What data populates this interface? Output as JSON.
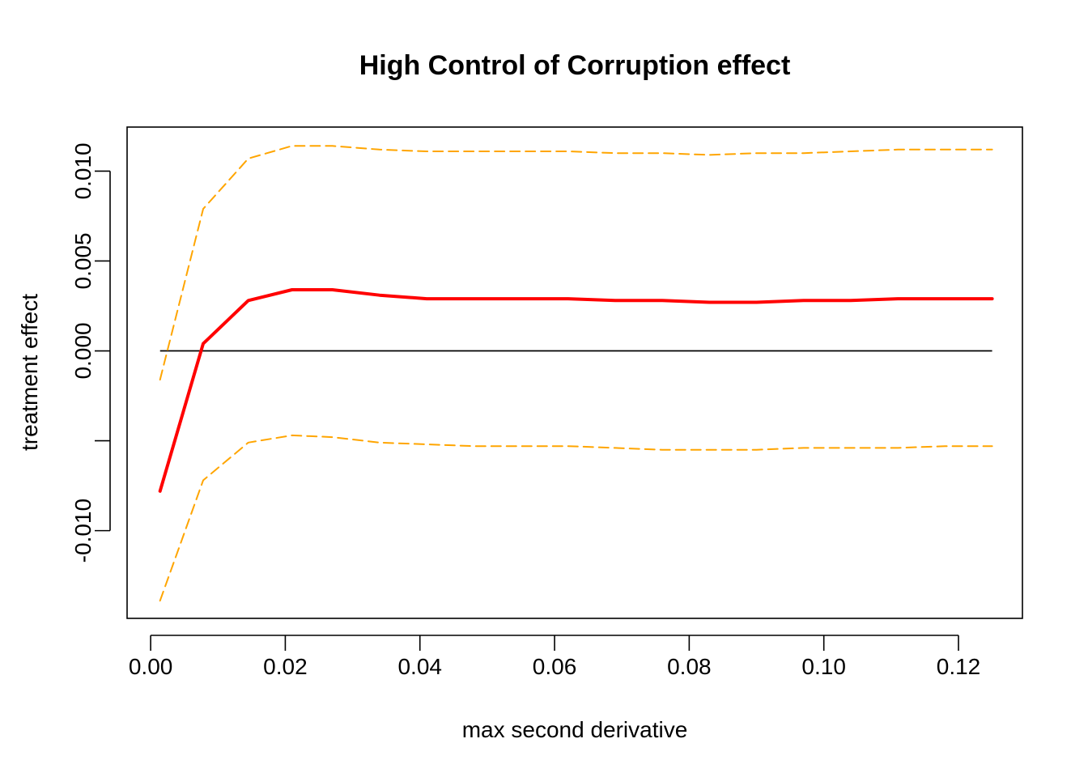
{
  "chart_data": {
    "type": "line",
    "title": "High Control of Corruption effect",
    "xlabel": "max second derivative",
    "ylabel": "treatment effect",
    "xlim": [
      -0.0035,
      0.1295
    ],
    "ylim": [
      -0.01488,
      0.01245
    ],
    "grid": false,
    "legend": "none",
    "x_ticks": [
      0.0,
      0.02,
      0.04,
      0.06,
      0.08,
      0.1,
      0.12
    ],
    "x_tick_labels": [
      "0.00",
      "0.02",
      "0.04",
      "0.06",
      "0.08",
      "0.10",
      "0.12"
    ],
    "y_ticks": [
      -0.01,
      -0.005,
      0.0,
      0.005,
      0.01
    ],
    "y_tick_labels": [
      "-0.010",
      "",
      "0.000",
      "0.005",
      "0.010"
    ],
    "x": [
      0.0014,
      0.0078,
      0.0145,
      0.021,
      0.027,
      0.034,
      0.041,
      0.048,
      0.055,
      0.062,
      0.069,
      0.076,
      0.083,
      0.09,
      0.097,
      0.104,
      0.111,
      0.118,
      0.125
    ],
    "series": [
      {
        "color": "#ff0000",
        "style": "solid",
        "values": [
          -0.0078,
          0.0004,
          0.0028,
          0.0034,
          0.0034,
          0.0031,
          0.0029,
          0.0029,
          0.0029,
          0.0029,
          0.0028,
          0.0028,
          0.0027,
          0.0027,
          0.0028,
          0.0028,
          0.0029,
          0.0029,
          0.0029
        ]
      },
      {
        "color": "#ffa500",
        "style": "dashed",
        "values": [
          -0.0016,
          0.0079,
          0.0107,
          0.0114,
          0.0114,
          0.0112,
          0.0111,
          0.0111,
          0.0111,
          0.0111,
          0.011,
          0.011,
          0.0109,
          0.011,
          0.011,
          0.0111,
          0.0112,
          0.0112,
          0.0112
        ]
      },
      {
        "color": "#ffa500",
        "style": "dashed",
        "values": [
          -0.0139,
          -0.0072,
          -0.0051,
          -0.0047,
          -0.0048,
          -0.0051,
          -0.0052,
          -0.0053,
          -0.0053,
          -0.0053,
          -0.0054,
          -0.0055,
          -0.0055,
          -0.0055,
          -0.0054,
          -0.0054,
          -0.0054,
          -0.0053,
          -0.0053
        ]
      }
    ],
    "reference_line": {
      "y": 0.0,
      "x_from": 0.0014,
      "x_to": 0.125,
      "color": "#000000"
    }
  }
}
